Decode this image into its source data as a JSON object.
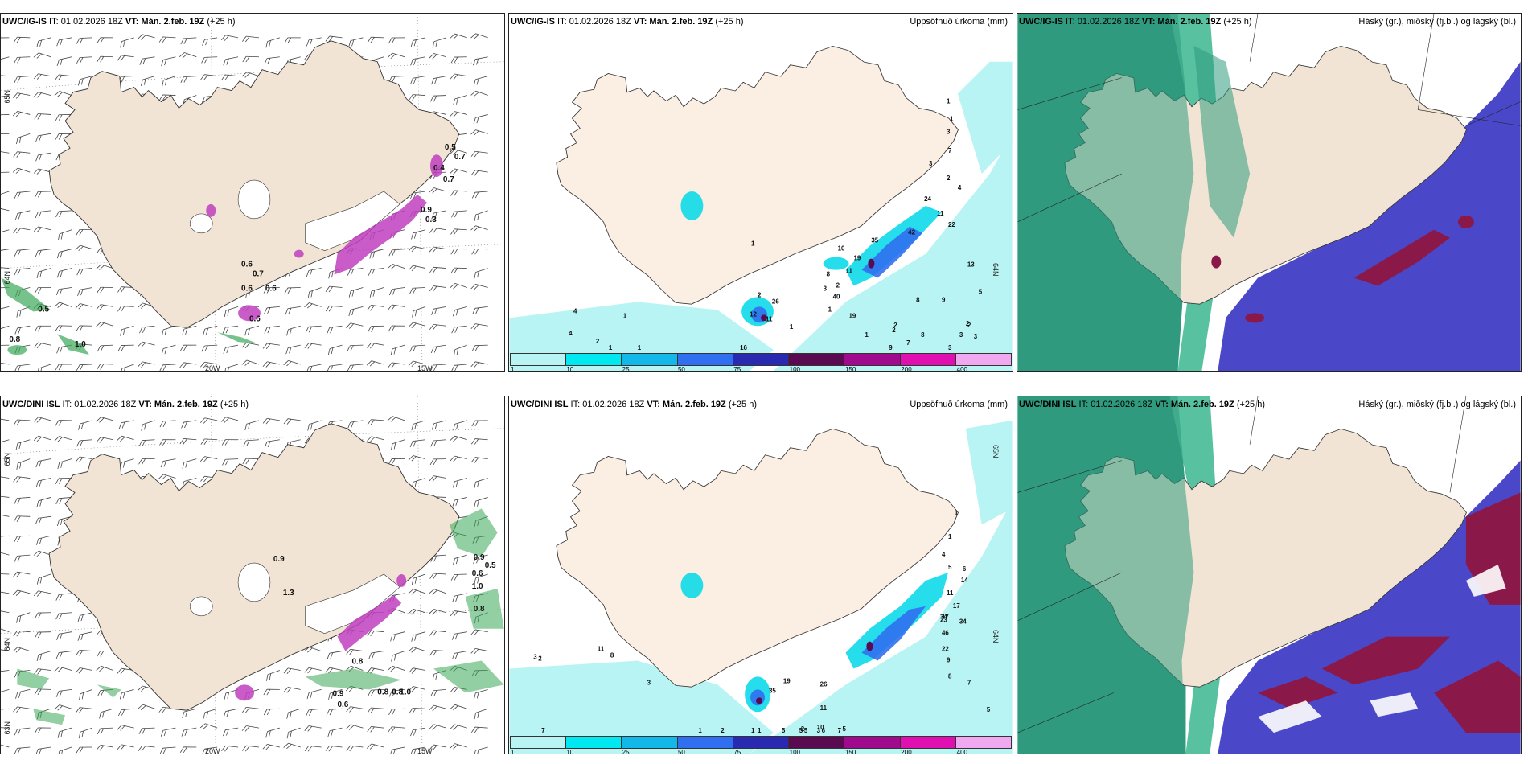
{
  "panels": {
    "p1": {
      "model": "UWC/IG-IS",
      "it": " IT: 01.02.2026 18Z ",
      "vt_label": "VT:",
      "vt": " Mán. 2.feb. 19Z",
      "lead": " (+25 h)",
      "right": "",
      "ylabels": [
        "65N",
        "64N"
      ],
      "xlabels": [
        "20W",
        "15W"
      ],
      "values": [
        "0.5",
        "0.7",
        "0.4",
        "0.7",
        "0.9",
        "0.3",
        "0.6",
        "0.7",
        "0.6",
        "0.6",
        "0.6",
        "0.5",
        "0.8",
        "1.0"
      ]
    },
    "p2": {
      "model": "UWC/IG-IS",
      "it": " IT: 01.02.2026 18Z ",
      "vt_label": "VT:",
      "vt": " Mán. 2.feb. 19Z",
      "lead": " (+25 h)",
      "right": "Uppsöfnuð úrkoma (mm)",
      "ylabels": [
        "64N"
      ],
      "values": [
        "1",
        "1",
        "3",
        "7",
        "3",
        "2",
        "4",
        "24",
        "11",
        "22",
        "42",
        "35",
        "19",
        "11",
        "10",
        "8",
        "3",
        "2",
        "26",
        "11",
        "12",
        "16",
        "40",
        "19",
        "13",
        "5",
        "9",
        "8",
        "2",
        "2",
        "1",
        "1",
        "2",
        "1",
        "1",
        "1",
        "1",
        "2",
        "4",
        "4",
        "3",
        "3",
        "2",
        "2",
        "3",
        "8",
        "7",
        "9",
        "1"
      ]
    },
    "p3": {
      "model": "UWC/IG-IS",
      "it": " IT: 01.02.2026 18Z ",
      "vt_label": "VT:",
      "vt": " Mán. 2.feb. 19Z",
      "lead": " (+25 h)",
      "right": "Háský (gr.), miðský (fj.bl.) og lágský (bl.)"
    },
    "p4": {
      "model": "UWC/DINI ISL",
      "it": " IT: 01.02.2026 18Z ",
      "vt_label": "VT:",
      "vt": " Mán. 2.feb. 19Z",
      "lead": " (+25 h)",
      "right": "",
      "ylabels": [
        "65N",
        "64N",
        "63N"
      ],
      "xlabels": [
        "20W",
        "15W"
      ],
      "values": [
        "0.9",
        "0.5",
        "0.6",
        "1.0",
        "0.8",
        "0.8",
        "0.9",
        "0.6",
        "0.8",
        "0.8",
        "1.0",
        "0.9",
        "1.3"
      ]
    },
    "p5": {
      "model": "UWC/DINI ISL",
      "it": " IT: 01.02.2026 18Z ",
      "vt_label": "VT:",
      "vt": " Mán. 2.feb. 19Z",
      "lead": " (+25 h)",
      "right": "Uppsöfnuð úrkoma (mm)",
      "ylabels": [
        "65N",
        "64N"
      ],
      "values": [
        "1",
        "1",
        "4",
        "5",
        "6",
        "14",
        "11",
        "17",
        "17",
        "23",
        "46",
        "34",
        "34",
        "22",
        "9",
        "8",
        "7",
        "5",
        "35",
        "19",
        "26",
        "11",
        "10",
        "5",
        "5",
        "5",
        "7",
        "5",
        "6",
        "3",
        "2",
        "1",
        "1",
        "2",
        "1",
        "3",
        "2",
        "7",
        "11",
        "8",
        "3"
      ]
    },
    "p6": {
      "model": "UWC/DINI ISL",
      "it": " IT: 01.02.2026 18Z ",
      "vt_label": "VT:",
      "vt": " Mán. 2.feb. 19Z",
      "lead": " (+25 h)",
      "right": "Háský (gr.), miðský (fj.bl.) og lágský (bl.)"
    }
  },
  "legend": {
    "ticks": [
      "1",
      "10",
      "25",
      "50",
      "75",
      "100",
      "150",
      "200",
      "400"
    ],
    "colors": [
      "#b8f4f4",
      "#00e8f0",
      "#12b8e8",
      "#3070f0",
      "#2a2ab0",
      "#5a0a50",
      "#a00a8c",
      "#e010b0",
      "#f0a8f0"
    ]
  },
  "colors": {
    "land": "#f2e4d4",
    "sea": "#ffffff",
    "precip_light": "#b8f4f4",
    "precip_mid": "#00d8e8",
    "cloud_high": "#2f9a7e",
    "cloud_mid": "#4a48c8",
    "cloud_low": "#8a1848",
    "snow": "#c040c0"
  }
}
